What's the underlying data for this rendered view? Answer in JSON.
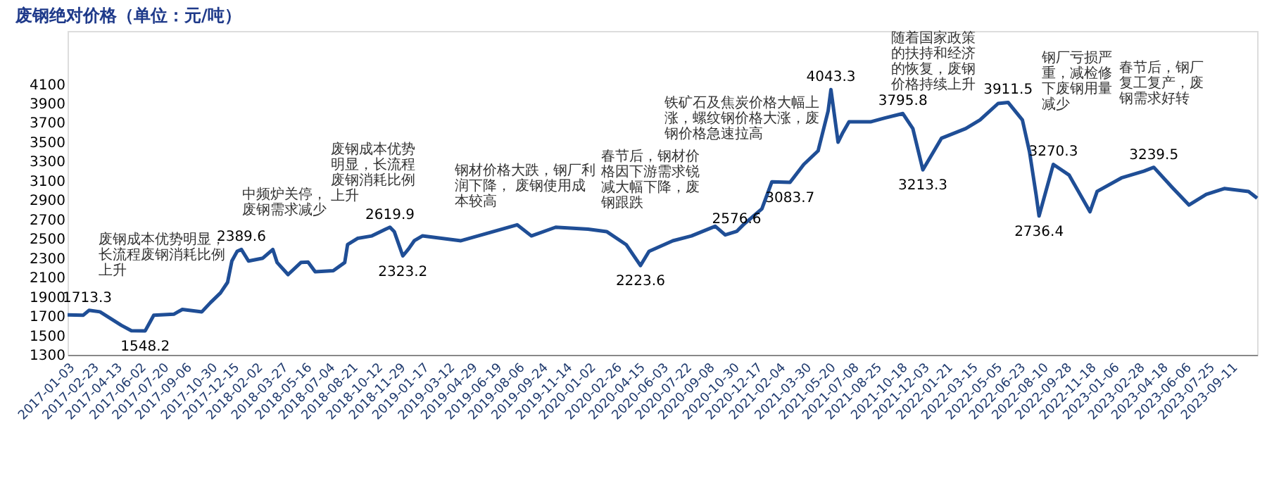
{
  "chart_data": {
    "type": "line",
    "title": "废钢绝对价格（单位：元/吨）",
    "x": [
      "2017-01-03",
      "2017-02-05",
      "2017-02-17",
      "2017-03-12",
      "2017-04-26",
      "2017-05-17",
      "2017-06-15",
      "2017-07-03",
      "2017-08-14",
      "2017-09-01",
      "2017-10-12",
      "2017-10-30",
      "2017-11-20",
      "2017-12-05",
      "2017-12-14",
      "2017-12-25",
      "2018-01-03",
      "2018-01-18",
      "2018-02-17",
      "2018-03-10",
      "2018-03-19",
      "2018-04-11",
      "2018-05-08",
      "2018-05-23",
      "2018-06-07",
      "2018-07-15",
      "2018-08-08",
      "2018-08-14",
      "2018-09-04",
      "2018-10-04",
      "2018-11-02",
      "2018-11-11",
      "2018-11-20",
      "2018-12-08",
      "2018-12-20",
      "2019-01-01",
      "2019-01-18",
      "2019-04-09",
      "2019-05-29",
      "2019-08-05",
      "2019-09-04",
      "2019-10-25",
      "2020-01-01",
      "2020-02-09",
      "2020-03-21",
      "2020-04-20",
      "2020-05-08",
      "2020-06-27",
      "2020-08-05",
      "2020-09-24",
      "2020-10-15",
      "2020-11-08",
      "2020-11-23",
      "2020-12-31",
      "2021-01-21",
      "2021-02-28",
      "2021-03-29",
      "2021-04-28",
      "2021-05-19",
      "2021-05-25",
      "2021-06-09",
      "2021-06-18",
      "2021-07-02",
      "2021-08-16",
      "2021-09-15",
      "2021-10-23",
      "2021-11-13",
      "2021-12-04",
      "2022-01-12",
      "2022-03-04",
      "2022-04-03",
      "2022-05-11",
      "2022-06-01",
      "2022-07-01",
      "2022-07-16",
      "2022-07-30",
      "2022-08-05",
      "2022-09-04",
      "2022-10-07",
      "2022-11-20",
      "2022-12-05",
      "2023-01-25",
      "2023-03-13",
      "2023-04-03",
      "2023-05-12",
      "2023-06-16",
      "2023-07-22",
      "2023-08-29",
      "2023-10-19",
      "2023-11-06"
    ],
    "series": [
      {
        "color": "#1f4e96",
        "values": [
          1713.3,
          1710,
          1760,
          1745,
          1605,
          1550,
          1548.2,
          1710,
          1720,
          1770,
          1745,
          1840,
          1940,
          2050,
          2270,
          2370,
          2389.6,
          2270,
          2300,
          2390,
          2255,
          2130,
          2255,
          2260,
          2160,
          2170,
          2255,
          2440,
          2505,
          2530,
          2600,
          2619.9,
          2575,
          2323.2,
          2395,
          2480,
          2530,
          2480,
          2550,
          2645,
          2530,
          2620,
          2600,
          2575,
          2440,
          2223.6,
          2370,
          2480,
          2530,
          2630,
          2540,
          2576.6,
          2650,
          2810,
          3090,
          3083.7,
          3270,
          3410,
          3820,
          4043.3,
          3500,
          3590,
          3710,
          3710,
          3750,
          3795.8,
          3640,
          3213.3,
          3540,
          3640,
          3730,
          3900,
          3911.5,
          3730,
          3400,
          2950,
          2736.4,
          3270.3,
          3160,
          2780,
          2990,
          3130,
          3200,
          3239.5,
          3030,
          2850,
          2960,
          3020,
          2990,
          2920
        ],
        "value_labels": [
          "1713.3",
          null,
          null,
          null,
          null,
          null,
          "1548.2",
          null,
          null,
          null,
          null,
          null,
          null,
          null,
          null,
          null,
          "2389.6",
          null,
          null,
          null,
          null,
          null,
          null,
          null,
          null,
          null,
          null,
          null,
          null,
          null,
          null,
          "2619.9",
          null,
          "2323.2",
          null,
          null,
          null,
          null,
          null,
          null,
          null,
          null,
          null,
          null,
          null,
          "2223.6",
          null,
          null,
          null,
          null,
          null,
          "2576.6",
          null,
          null,
          null,
          "3083.7",
          null,
          null,
          null,
          "4043.3",
          null,
          null,
          null,
          null,
          null,
          "3795.8",
          null,
          "3213.3",
          null,
          null,
          null,
          null,
          "3911.5",
          null,
          null,
          null,
          "2736.4",
          "3270.3",
          null,
          null,
          null,
          null,
          null,
          "3239.5",
          null,
          null,
          null,
          null,
          null,
          null
        ]
      }
    ],
    "xlim": [
      "2017-01-03",
      "2023-11-06"
    ],
    "xticks": [
      "2017-01-03",
      "2017-02-23",
      "2017-04-13",
      "2017-06-02",
      "2017-07-20",
      "2017-09-06",
      "2017-10-30",
      "2017-12-15",
      "2018-02-02",
      "2018-03-27",
      "2018-05-16",
      "2018-07-04",
      "2018-08-21",
      "2018-10-12",
      "2018-11-29",
      "2019-01-17",
      "2019-03-12",
      "2019-04-29",
      "2019-06-19",
      "2019-08-06",
      "2019-09-24",
      "2019-11-14",
      "2020-01-02",
      "2020-02-26",
      "2020-04-15",
      "2020-06-03",
      "2020-07-22",
      "2020-09-08",
      "2020-10-30",
      "2020-12-17",
      "2021-02-04",
      "2021-03-30",
      "2021-05-20",
      "2021-07-08",
      "2021-08-25",
      "2021-10-18",
      "2021-12-03",
      "2022-01-21",
      "2022-03-15",
      "2022-05-05",
      "2022-06-23",
      "2022-08-10",
      "2022-09-28",
      "2022-11-18",
      "2023-01-06",
      "2023-02-28",
      "2023-04-18",
      "2023-06-06",
      "2023-07-25",
      "2023-09-11"
    ],
    "ylim": [
      1300,
      4650
    ],
    "yticks": [
      1300,
      1500,
      1700,
      1900,
      2100,
      2300,
      2500,
      2700,
      2900,
      3100,
      3300,
      3500,
      3700,
      3900,
      4100
    ],
    "grid": false,
    "marker": "none",
    "line_style": "solid",
    "annotations": [
      "废钢成本优势明显，长流程废钢消耗比例上升",
      "中频炉关停，废钢需求减少",
      "废钢成本优势明显，长流程废钢消耗比例上升",
      "钢材价格大跌，钢厂利润下降， 废钢使用成本较高",
      "春节后，钢材价格因下游需求锐减大幅下降，废钢跟跌",
      "铁矿石及焦炭价格大幅上涨，螺纹钢价格大涨，废钢价格急速拉高",
      "随着国家政策的扶持和经济的恢复，废钢价格持续上升",
      "钢厂亏损严重，减检修下废钢用量减少",
      "春节后，钢厂复工复产，废钢需求好转"
    ]
  }
}
